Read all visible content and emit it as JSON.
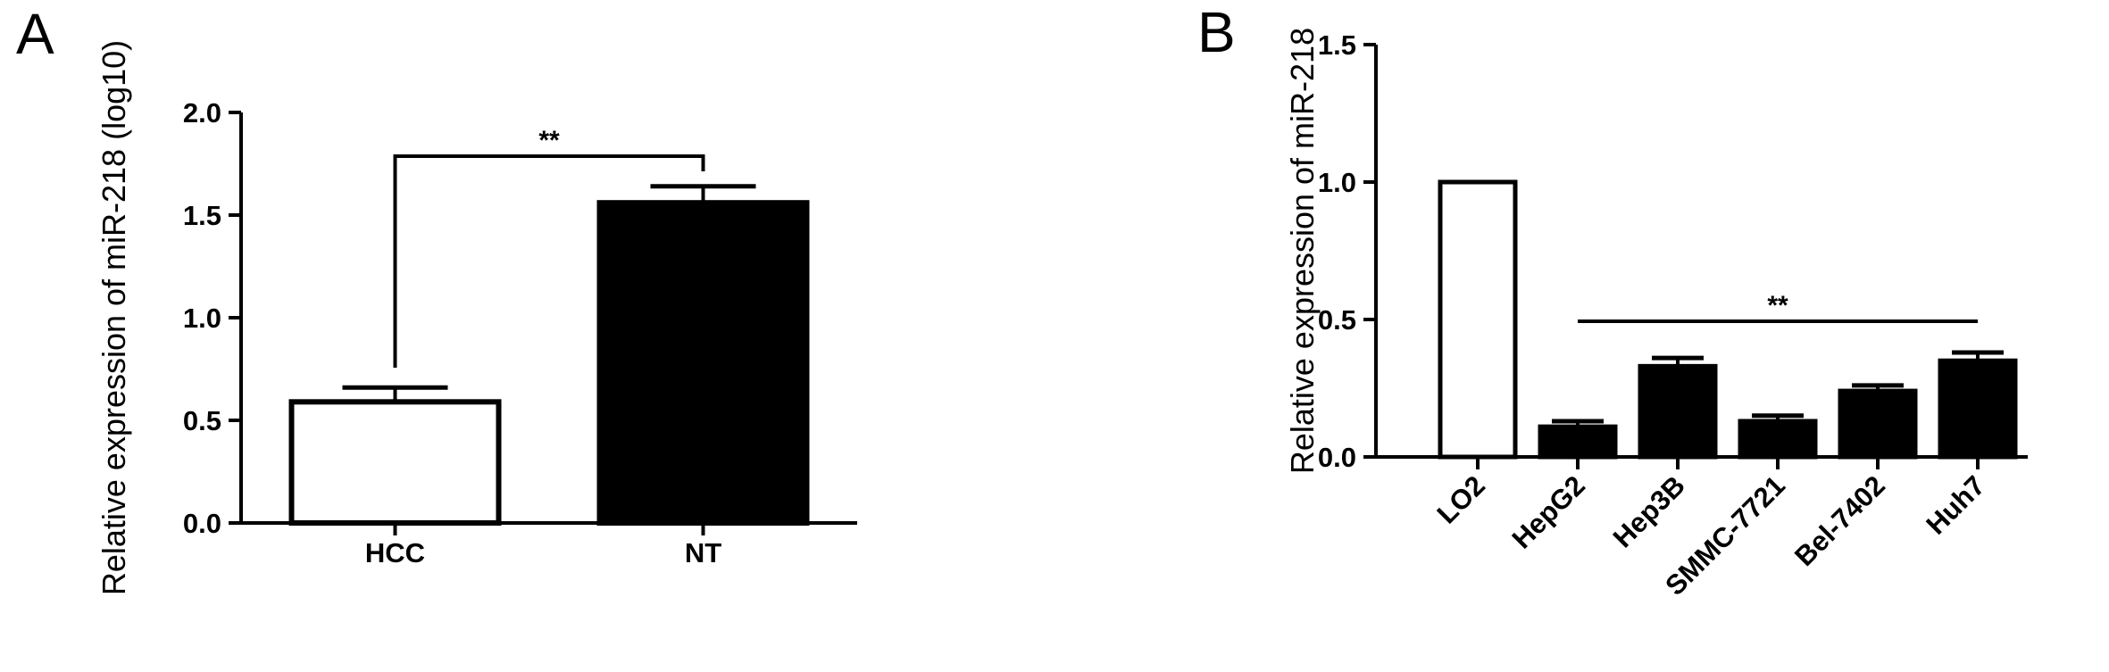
{
  "panels": [
    {
      "letter": "A",
      "chart_data": {
        "type": "bar",
        "categories": [
          "HCC",
          "NT"
        ],
        "values": [
          0.59,
          1.56
        ],
        "errors": [
          0.07,
          0.08
        ],
        "fills": [
          "#ffffff",
          "#000000"
        ],
        "ylabel": "Relative expression of miR-218 (log10)",
        "xlabel": "",
        "ylim": [
          0,
          2.0
        ],
        "yticks": [
          "0.0",
          "0.5",
          "1.0",
          "1.5",
          "2.0"
        ],
        "significance": {
          "label": "**",
          "from": "HCC",
          "to": "NT"
        }
      }
    },
    {
      "letter": "B",
      "chart_data": {
        "type": "bar",
        "categories": [
          "LO2",
          "HepG2",
          "Hep3B",
          "SMMC-7721",
          "Bel-7402",
          "Huh7"
        ],
        "values": [
          1.0,
          0.11,
          0.33,
          0.13,
          0.24,
          0.35
        ],
        "errors": [
          0.0,
          0.02,
          0.03,
          0.02,
          0.02,
          0.03
        ],
        "fills": [
          "#ffffff",
          "#000000",
          "#000000",
          "#000000",
          "#000000",
          "#000000"
        ],
        "ylabel": "Relative expression of miR-218",
        "xlabel": "",
        "ylim": [
          0,
          1.5
        ],
        "yticks": [
          "0.0",
          "0.5",
          "1.0",
          "1.5"
        ],
        "significance": {
          "label": "**",
          "from": "HepG2",
          "to": "Huh7"
        }
      }
    }
  ]
}
